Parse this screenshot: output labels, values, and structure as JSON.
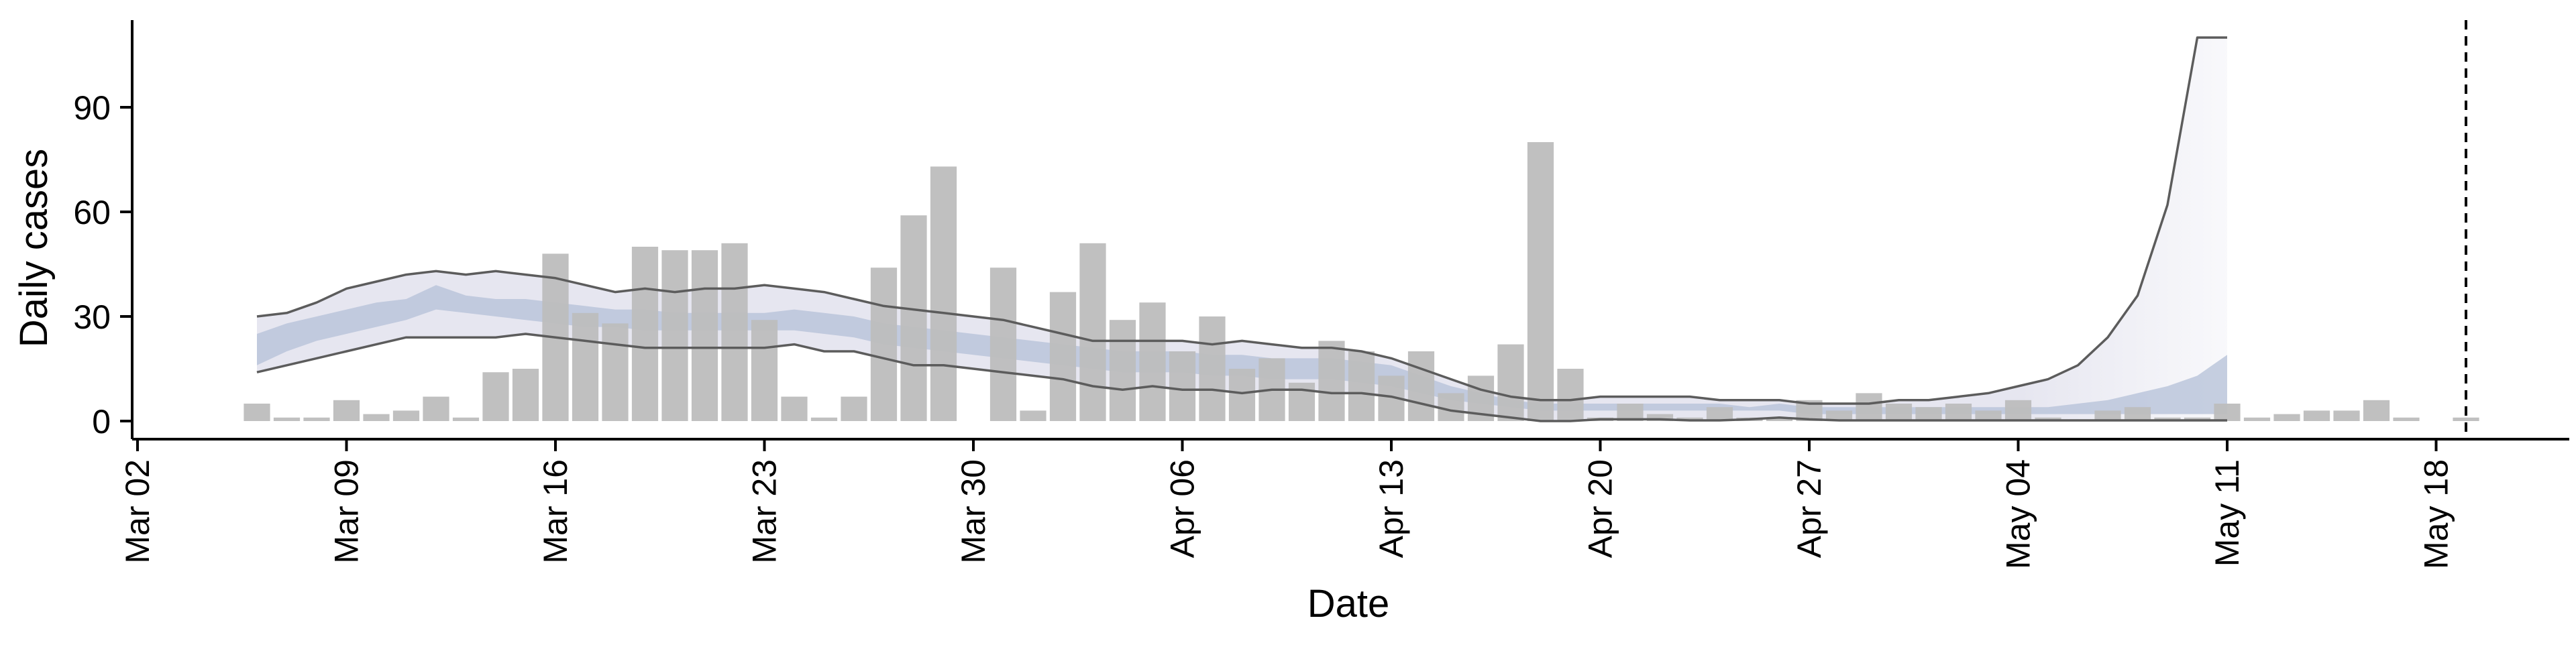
{
  "chart_data": {
    "type": "bar",
    "xlabel": "Date",
    "ylabel": "Daily cases",
    "ylim": [
      -5,
      115
    ],
    "x_ticks": [
      "Mar 02",
      "Mar 09",
      "Mar 16",
      "Mar 23",
      "Mar 30",
      "Apr 06",
      "Apr 13",
      "Apr 20",
      "Apr 27",
      "May 04",
      "May 11",
      "May 18"
    ],
    "y_ticks": [
      0,
      30,
      60,
      90
    ],
    "bars": {
      "dates": [
        "Mar 06",
        "Mar 07",
        "Mar 08",
        "Mar 09",
        "Mar 10",
        "Mar 11",
        "Mar 12",
        "Mar 13",
        "Mar 14",
        "Mar 15",
        "Mar 16",
        "Mar 17",
        "Mar 18",
        "Mar 19",
        "Mar 20",
        "Mar 21",
        "Mar 22",
        "Mar 23",
        "Mar 24",
        "Mar 25",
        "Mar 26",
        "Mar 27",
        "Mar 28",
        "Mar 29",
        "Mar 30",
        "Mar 31",
        "Apr 01",
        "Apr 02",
        "Apr 03",
        "Apr 04",
        "Apr 05",
        "Apr 06",
        "Apr 07",
        "Apr 08",
        "Apr 09",
        "Apr 10",
        "Apr 11",
        "Apr 12",
        "Apr 13",
        "Apr 14",
        "Apr 15",
        "Apr 16",
        "Apr 17",
        "Apr 18",
        "Apr 19",
        "Apr 20",
        "Apr 21",
        "Apr 22",
        "Apr 23",
        "Apr 24",
        "Apr 25",
        "Apr 26",
        "Apr 27",
        "Apr 28",
        "Apr 29",
        "Apr 30",
        "May 01",
        "May 02",
        "May 03",
        "May 04",
        "May 05",
        "May 06",
        "May 07",
        "May 08",
        "May 09",
        "May 10",
        "May 11",
        "May 12",
        "May 13",
        "May 14",
        "May 15",
        "May 16",
        "May 17",
        "May 18",
        "May 19"
      ],
      "values": [
        5,
        1,
        1,
        6,
        2,
        3,
        7,
        1,
        14,
        15,
        48,
        31,
        28,
        50,
        49,
        49,
        51,
        29,
        7,
        1,
        7,
        44,
        59,
        73,
        0,
        44,
        3,
        37,
        51,
        29,
        34,
        20,
        30,
        15,
        18,
        11,
        23,
        20,
        13,
        20,
        8,
        13,
        22,
        80,
        15,
        1,
        5,
        2,
        1,
        4,
        1,
        1,
        6,
        3,
        8,
        5,
        4,
        5,
        3,
        6,
        1,
        0,
        3,
        4,
        1,
        1,
        5,
        1,
        2,
        3,
        3,
        6,
        1,
        0,
        1
      ],
      "color": "#bdbdbd"
    },
    "estimate": {
      "dates": [
        "Mar 06",
        "Mar 07",
        "Mar 08",
        "Mar 09",
        "Mar 10",
        "Mar 11",
        "Mar 12",
        "Mar 13",
        "Mar 14",
        "Mar 15",
        "Mar 16",
        "Mar 17",
        "Mar 18",
        "Mar 19",
        "Mar 20",
        "Mar 21",
        "Mar 22",
        "Mar 23",
        "Mar 24",
        "Mar 25",
        "Mar 26",
        "Mar 27",
        "Mar 28",
        "Mar 29",
        "Mar 30",
        "Mar 31",
        "Apr 01",
        "Apr 02",
        "Apr 03",
        "Apr 04",
        "Apr 05",
        "Apr 06",
        "Apr 07",
        "Apr 08",
        "Apr 09",
        "Apr 10",
        "Apr 11",
        "Apr 12",
        "Apr 13",
        "Apr 14",
        "Apr 15",
        "Apr 16",
        "Apr 17",
        "Apr 18",
        "Apr 19",
        "Apr 20",
        "Apr 21",
        "Apr 22",
        "Apr 23",
        "Apr 24",
        "Apr 25",
        "Apr 26",
        "Apr 27",
        "Apr 28",
        "Apr 29",
        "Apr 30",
        "May 01",
        "May 02",
        "May 03",
        "May 04",
        "May 05",
        "May 06",
        "May 07",
        "May 08",
        "May 09",
        "May 10",
        "May 11"
      ],
      "lower90": [
        14,
        16,
        18,
        20,
        22,
        24,
        24,
        24,
        24,
        25,
        24,
        23,
        22,
        21,
        21,
        21,
        21,
        21,
        22,
        20,
        20,
        18,
        16,
        16,
        15,
        14,
        13,
        12,
        10,
        9,
        10,
        9,
        9,
        8,
        9,
        9,
        8,
        8,
        7,
        5,
        3,
        2,
        1,
        0,
        0,
        0.5,
        0.5,
        0.5,
        0.2,
        0.2,
        0.5,
        1,
        0.5,
        0.2,
        0.2,
        0.2,
        0.2,
        0.2,
        0.2,
        0.2,
        0.2,
        0.2,
        0.2,
        0.2,
        0.2,
        0.2,
        0.2
      ],
      "upper90": [
        30,
        31,
        34,
        38,
        40,
        42,
        43,
        42,
        43,
        42,
        41,
        39,
        37,
        38,
        37,
        38,
        38,
        39,
        38,
        37,
        35,
        33,
        32,
        31,
        30,
        29,
        27,
        25,
        23,
        23,
        23,
        23,
        22,
        23,
        22,
        21,
        21,
        20,
        18,
        15,
        12,
        9,
        7,
        6,
        6,
        7,
        7,
        7,
        7,
        6,
        6,
        6,
        5,
        5,
        5,
        6,
        6,
        7,
        8,
        10,
        12,
        16,
        24,
        36,
        62,
        110,
        110
      ],
      "lower50": [
        16,
        20,
        23,
        25,
        27,
        29,
        32,
        31,
        30,
        29,
        28,
        27,
        27,
        26,
        26,
        26,
        26,
        26,
        26,
        25,
        24,
        22,
        21,
        20,
        19,
        18,
        17,
        16,
        15,
        14,
        14,
        14,
        13,
        13,
        12,
        12,
        12,
        11,
        10,
        8,
        6,
        5,
        4,
        3,
        3,
        3,
        3,
        3,
        3,
        3,
        3,
        3,
        2,
        2,
        2,
        2,
        2,
        2,
        2,
        2,
        2,
        2,
        2,
        2,
        2,
        2,
        2
      ],
      "upper50": [
        25,
        28,
        30,
        32,
        34,
        35,
        39,
        36,
        35,
        35,
        34,
        33,
        32,
        32,
        31,
        31,
        31,
        31,
        32,
        31,
        30,
        28,
        27,
        26,
        25,
        24,
        23,
        22,
        21,
        20,
        20,
        20,
        19,
        19,
        18,
        18,
        18,
        17,
        16,
        13,
        10,
        8,
        6,
        5,
        5,
        5,
        5,
        5,
        5,
        5,
        4,
        5,
        4,
        4,
        4,
        4,
        4,
        4,
        4,
        4,
        4,
        5,
        6,
        8,
        10,
        13,
        19
      ],
      "fill90_color": "#e6e6f0",
      "fill50_color": "#b8c3da",
      "line_color": "#5c5c5c"
    },
    "vline": {
      "date": "May 19",
      "style": "dashed"
    },
    "grid": false
  }
}
